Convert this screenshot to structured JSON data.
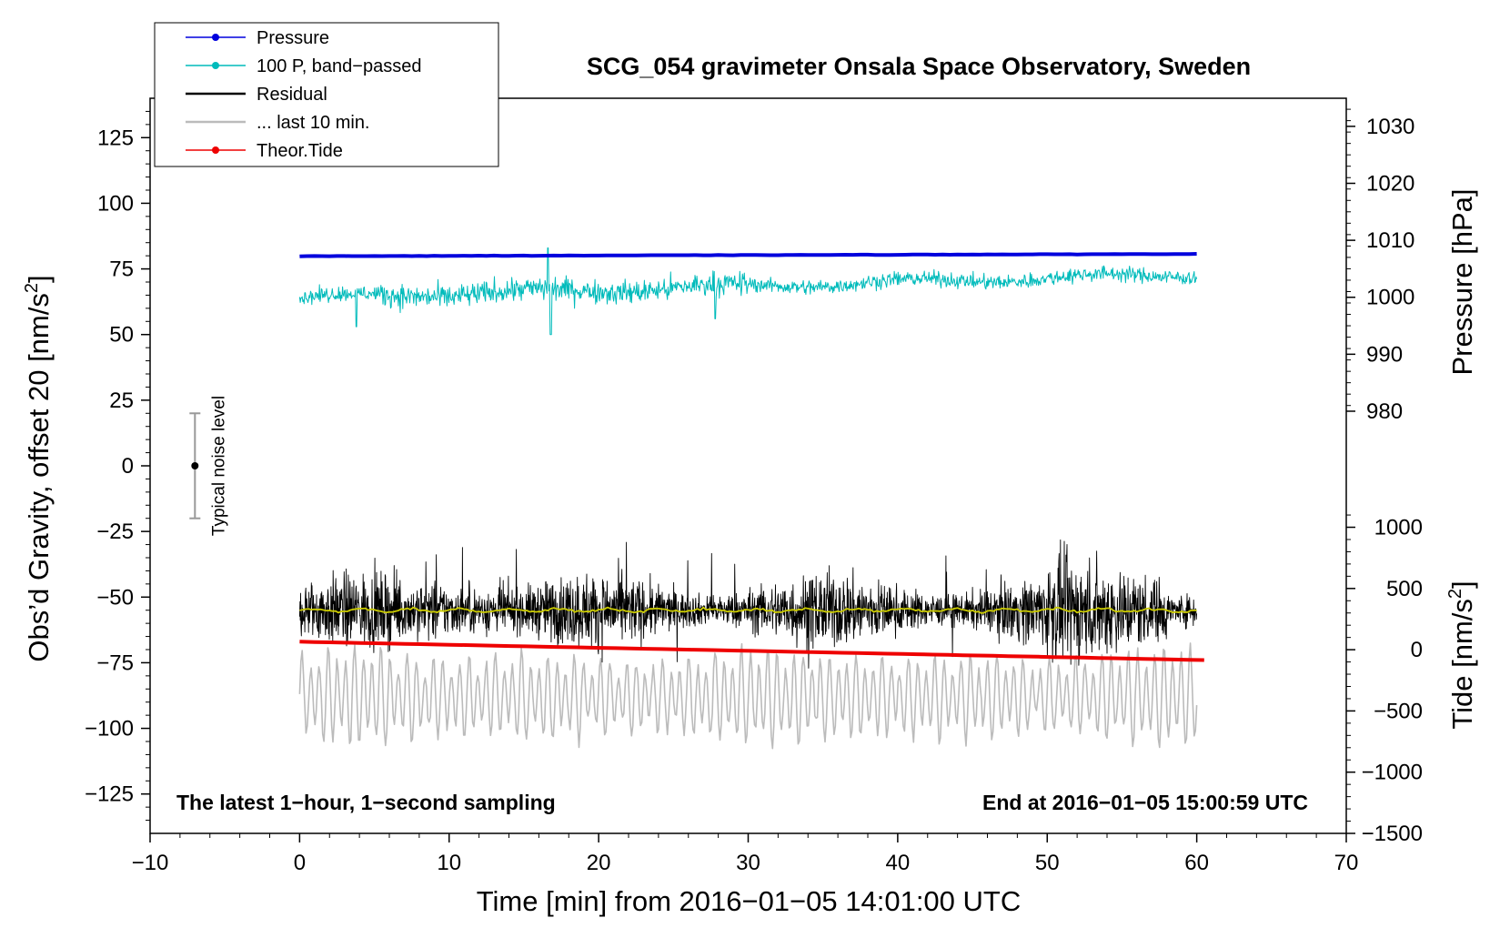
{
  "chart_data": {
    "type": "line",
    "title": "SCG_054 gravimeter Onsala Space Observatory, Sweden",
    "xlabel": "Time [min] from 2016−01−05 14:01:00 UTC",
    "ylabel_left": "Obs’d Gravity, offset 20 [nm/s",
    "ylabel_left_sup": "2",
    "ylabel_left_end": "]",
    "ylabel_right_pressure": "Pressure [hPa]",
    "ylabel_right_tide": "Tide [nm/s",
    "ylabel_right_tide_sup": "2",
    "ylabel_right_tide_end": "]",
    "xlim": [
      -10,
      70
    ],
    "ylim_left": [
      -140,
      140
    ],
    "x_ticks": [
      {
        "v": -10,
        "label": "−10"
      },
      {
        "v": 0,
        "label": "0"
      },
      {
        "v": 10,
        "label": "10"
      },
      {
        "v": 20,
        "label": "20"
      },
      {
        "v": 30,
        "label": "30"
      },
      {
        "v": 40,
        "label": "40"
      },
      {
        "v": 50,
        "label": "50"
      },
      {
        "v": 60,
        "label": "60"
      },
      {
        "v": 70,
        "label": "70"
      }
    ],
    "y_left_ticks": [
      {
        "v": 125,
        "label": "125"
      },
      {
        "v": 100,
        "label": "100"
      },
      {
        "v": 75,
        "label": "75"
      },
      {
        "v": 50,
        "label": "50"
      },
      {
        "v": 25,
        "label": "25"
      },
      {
        "v": 0,
        "label": "0"
      },
      {
        "v": -25,
        "label": "−25"
      },
      {
        "v": -50,
        "label": "−50"
      },
      {
        "v": -75,
        "label": "−75"
      },
      {
        "v": -100,
        "label": "−100"
      },
      {
        "v": -125,
        "label": "−125"
      }
    ],
    "pressure_axis": {
      "range": [
        980,
        1030
      ],
      "gravity_at_980": 20.8,
      "gravity_at_1030": 129.3,
      "ticks": [
        {
          "v": 1030,
          "label": "1030"
        },
        {
          "v": 1020,
          "label": "1020"
        },
        {
          "v": 1010,
          "label": "1010"
        },
        {
          "v": 1000,
          "label": "1000"
        },
        {
          "v": 990,
          "label": "990"
        },
        {
          "v": 980,
          "label": "980"
        }
      ]
    },
    "tide_axis": {
      "range": [
        -1500,
        1000
      ],
      "gravity_at_minus1500": -140,
      "gravity_at_1000": -23.4,
      "ticks": [
        {
          "v": 1000,
          "label": "1000"
        },
        {
          "v": 500,
          "label": "500"
        },
        {
          "v": 0,
          "label": "0"
        },
        {
          "v": -500,
          "label": "−500"
        },
        {
          "v": -1000,
          "label": "−1000"
        },
        {
          "v": -1500,
          "label": "−1500"
        }
      ]
    },
    "series": [
      {
        "name": "Pressure",
        "color": "#0000dd",
        "unit": "hPa",
        "x_range": [
          0,
          60
        ],
        "start": 1007.2,
        "end": 1007.6
      },
      {
        "name": "100 P, band−passed",
        "color": "#00bbbb",
        "unit": "nm/s2",
        "x_range": [
          0,
          60
        ],
        "start": 64,
        "end": 73,
        "spikes": [
          [
            3.8,
            53
          ],
          [
            16.8,
            50
          ],
          [
            16.6,
            83
          ],
          [
            27.8,
            56
          ]
        ]
      },
      {
        "name": "Residual",
        "color": "#000000",
        "unit": "nm/s2",
        "x_range": [
          0,
          60
        ],
        "mean": -55,
        "min": -82,
        "max": -25
      },
      {
        "name": "... last 10 min.",
        "color": "#bbbbbb",
        "unit": "nm/s2",
        "x_range": [
          0,
          60
        ],
        "mean": -88,
        "min": -117,
        "max": -60
      },
      {
        "name": "Theor.Tide",
        "color": "#ee0000",
        "unit": "nm/s2",
        "x_range": [
          0,
          60.5
        ],
        "start": -67,
        "end": -74
      },
      {
        "name": "smoothed residual",
        "color": "#cccc00",
        "unit": "nm/s2",
        "x_range": [
          0,
          60
        ],
        "level": -55
      }
    ],
    "noise_bar": {
      "label": "Typical noise level",
      "x": -7,
      "center": 0,
      "low": -20,
      "high": 20
    },
    "annotations": {
      "left": "The latest 1−hour, 1−second sampling",
      "right": "End at 2016−01−05 15:00:59 UTC"
    },
    "legend": {
      "placement": "top-left",
      "entries": [
        {
          "label": "Pressure",
          "color": "#0000dd",
          "marker": true
        },
        {
          "label": "100 P, band−passed",
          "color": "#00bbbb",
          "marker": true
        },
        {
          "label": "Residual",
          "color": "#000000",
          "marker": false
        },
        {
          "label": "... last 10 min.",
          "color": "#bbbbbb",
          "marker": false
        },
        {
          "label": "Theor.Tide",
          "color": "#ee0000",
          "marker": true
        }
      ]
    }
  }
}
